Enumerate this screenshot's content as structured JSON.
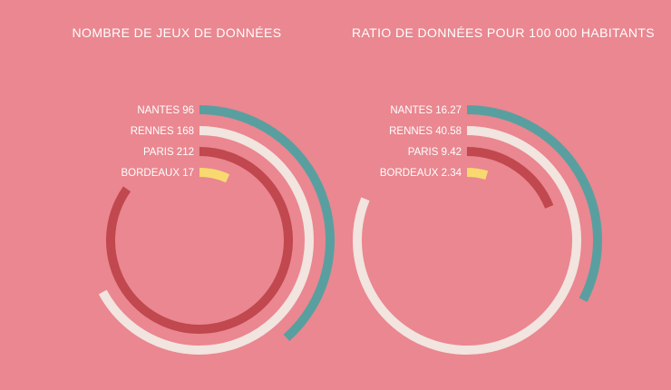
{
  "chart_data": [
    {
      "type": "radial-bar",
      "title": "NOMBRE DE JEUX DE DONNÉES",
      "categories": [
        "NANTES",
        "RENNES",
        "PARIS",
        "BORDEAUX"
      ],
      "values": [
        96,
        168,
        212,
        17
      ],
      "value_labels": [
        "96",
        "168",
        "212",
        "17"
      ],
      "max": 250,
      "colors": [
        "#5a9fa0",
        "#f2e4df",
        "#c0484e",
        "#f8d970"
      ]
    },
    {
      "type": "radial-bar",
      "title": "RATIO DE DONNÉES POUR 100 000 HABITANTS",
      "categories": [
        "NANTES",
        "RENNES",
        "PARIS",
        "BORDEAUX"
      ],
      "values": [
        16.27,
        40.58,
        9.42,
        2.34
      ],
      "value_labels": [
        "16.27",
        "40.58",
        "9.42",
        "2.34"
      ],
      "max": 50,
      "colors": [
        "#5a9fa0",
        "#f2e4df",
        "#c0484e",
        "#f8d970"
      ]
    }
  ]
}
